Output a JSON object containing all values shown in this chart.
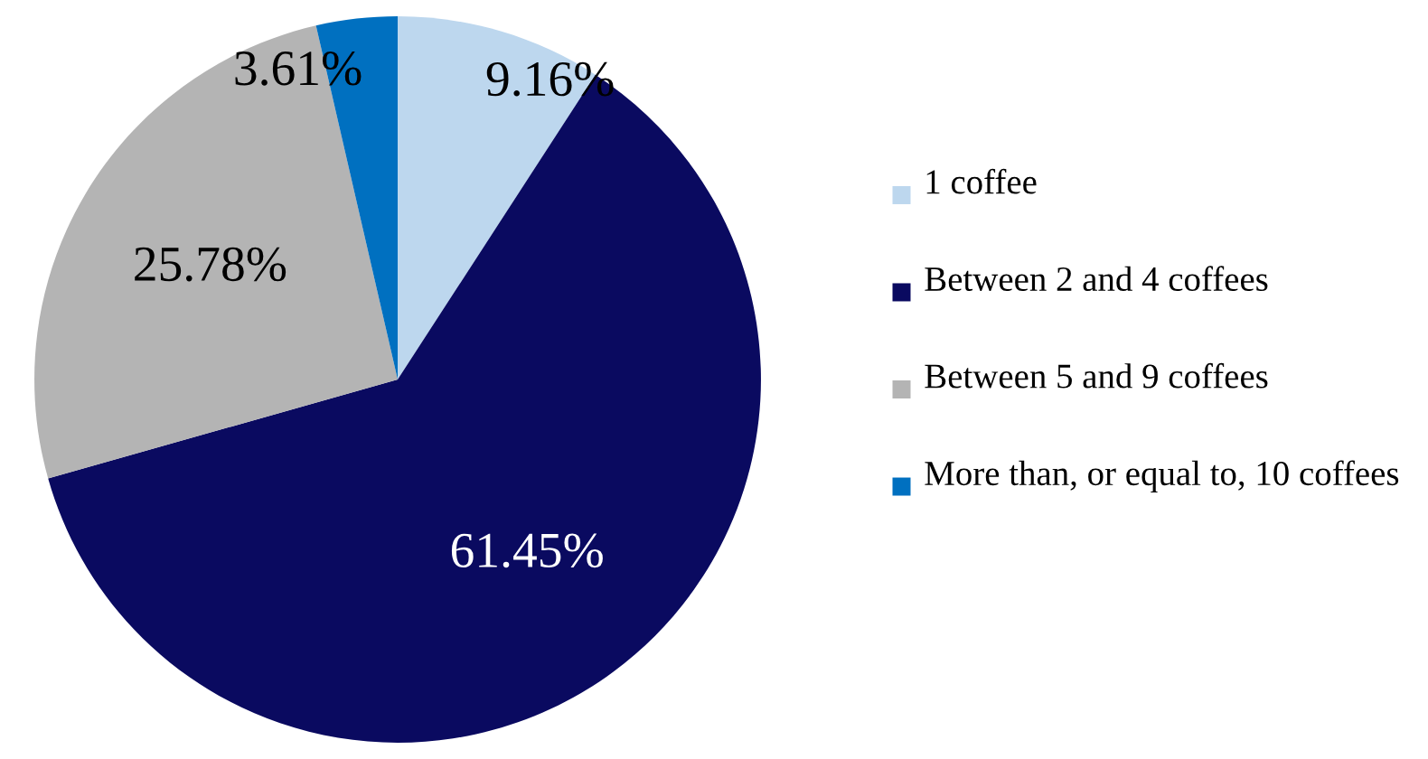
{
  "chart_data": {
    "type": "pie",
    "categories": [
      "1 coffee",
      "Between 2 and 4 coffees",
      "Between 5 and 9 coffees",
      "More than, or equal to, 10 coffees"
    ],
    "values": [
      9.16,
      61.45,
      25.78,
      3.61
    ],
    "colors": [
      "#bdd7ee",
      "#0a0a60",
      "#b4b4b4",
      "#0070c0"
    ],
    "value_labels": [
      "9.16%",
      "61.45%",
      "25.78%",
      "3.61%"
    ],
    "legend": "right"
  }
}
